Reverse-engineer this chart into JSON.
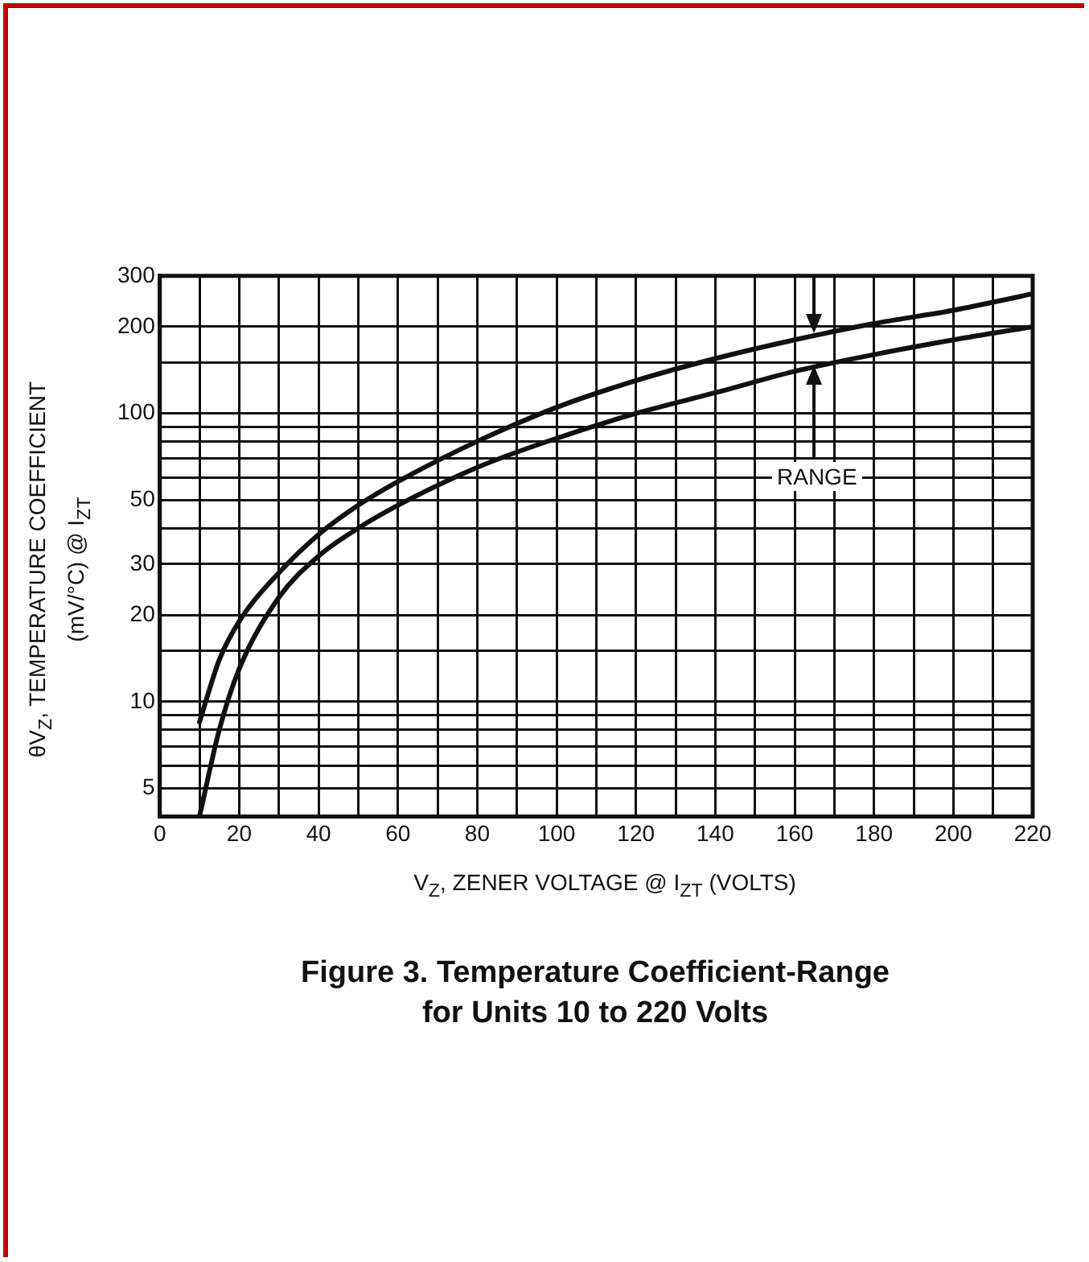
{
  "chart_data": {
    "type": "line",
    "title": "Figure 3. Temperature Coefficient-Range\nfor Units 10 to 220 Volts",
    "xlabel": "V$_{Z}$, ZENER VOLTAGE @ I$_{ZT}$ (VOLTS)",
    "ylabel": "θV$_{Z}$, TEMPERATURE COEFFICIENT\n(mV/°C) @ I$_{ZT}$",
    "x": [
      10,
      15,
      20,
      30,
      40,
      50,
      60,
      80,
      100,
      120,
      140,
      160,
      180,
      200,
      220
    ],
    "series": [
      {
        "color": "#111111",
        "values": [
          8.5,
          14,
          19,
          28,
          38,
          48,
          58,
          80,
          105,
          130,
          155,
          180,
          205,
          228,
          260
        ]
      },
      {
        "color": "#111111",
        "values": [
          4,
          8,
          13,
          23,
          32,
          40,
          48,
          65,
          82,
          100,
          118,
          140,
          160,
          180,
          200
        ]
      }
    ],
    "xlim": [
      0,
      220
    ],
    "xticks": [
      0,
      {
        "value": 10,
        "label": null
      },
      20,
      {
        "value": 30,
        "label": null
      },
      40,
      {
        "value": 50,
        "label": null
      },
      60,
      {
        "value": 70,
        "label": null
      },
      80,
      {
        "value": 90,
        "label": null
      },
      100,
      {
        "value": 110,
        "label": null
      },
      120,
      {
        "value": 130,
        "label": null
      },
      140,
      {
        "value": 150,
        "label": null
      },
      160,
      {
        "value": 170,
        "label": null
      },
      180,
      {
        "value": 190,
        "label": null
      },
      200,
      {
        "value": 210,
        "label": null
      },
      220
    ],
    "ylim": [
      4,
      300
    ],
    "yticks": [
      5,
      {
        "value": 6,
        "label": null
      },
      {
        "value": 7,
        "label": null
      },
      {
        "value": 8,
        "label": null
      },
      {
        "value": 9,
        "label": null
      },
      10,
      {
        "value": 15,
        "label": null
      },
      20,
      30,
      {
        "value": 40,
        "label": null
      },
      50,
      {
        "value": 60,
        "label": null
      },
      {
        "value": 70,
        "label": null
      },
      {
        "value": 80,
        "label": null
      },
      {
        "value": 90,
        "label": null
      },
      100,
      {
        "value": 150,
        "label": null
      },
      200,
      300
    ],
    "log": "y",
    "grid": true,
    "legend": false,
    "marker": "none",
    "line_style": "solid",
    "annotations": [
      "RANGE"
    ]
  }
}
